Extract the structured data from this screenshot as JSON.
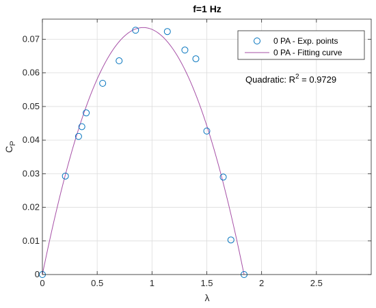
{
  "chart_data": {
    "type": "scatter",
    "title": "f=1 Hz",
    "xlabel": "λ",
    "ylabel_main": "C",
    "ylabel_sub": "P",
    "xlim": [
      0,
      3
    ],
    "ylim": [
      0,
      0.076
    ],
    "x_ticks": [
      0,
      0.5,
      1,
      1.5,
      2,
      2.5
    ],
    "x_tick_labels": [
      "0",
      "0.5",
      "1",
      "1.5",
      "2",
      "2.5"
    ],
    "y_ticks": [
      0,
      0.01,
      0.02,
      0.03,
      0.04,
      0.05,
      0.06,
      0.07
    ],
    "y_tick_labels": [
      "0",
      "0.01",
      "0.02",
      "0.03",
      "0.04",
      "0.05",
      "0.06",
      "0.07"
    ],
    "grid": true,
    "legend_position": "top-right",
    "series": [
      {
        "name": "0 PA - Exp. points",
        "kind": "markers",
        "marker": "circle",
        "color": "#0072BD",
        "x": [
          0.0,
          0.21,
          0.33,
          0.36,
          0.4,
          0.55,
          0.7,
          0.85,
          1.14,
          1.3,
          1.4,
          1.5,
          1.65,
          1.72,
          1.84
        ],
        "y": [
          0.0,
          0.0293,
          0.0411,
          0.044,
          0.0481,
          0.0569,
          0.0636,
          0.0727,
          0.0723,
          0.0668,
          0.0642,
          0.0427,
          0.029,
          0.0103,
          0.0
        ]
      },
      {
        "name": "0 PA - Fitting curve",
        "kind": "line",
        "color": "#A64FA6",
        "quadratic_coefficients": {
          "a": -0.08684,
          "b": 0.15978,
          "c": 0.0
        },
        "x_range": [
          0.0,
          1.84
        ]
      }
    ],
    "annotation": {
      "prefix": "Quadratic: R",
      "superscript": "2",
      "suffix": " = 0.9729"
    }
  }
}
